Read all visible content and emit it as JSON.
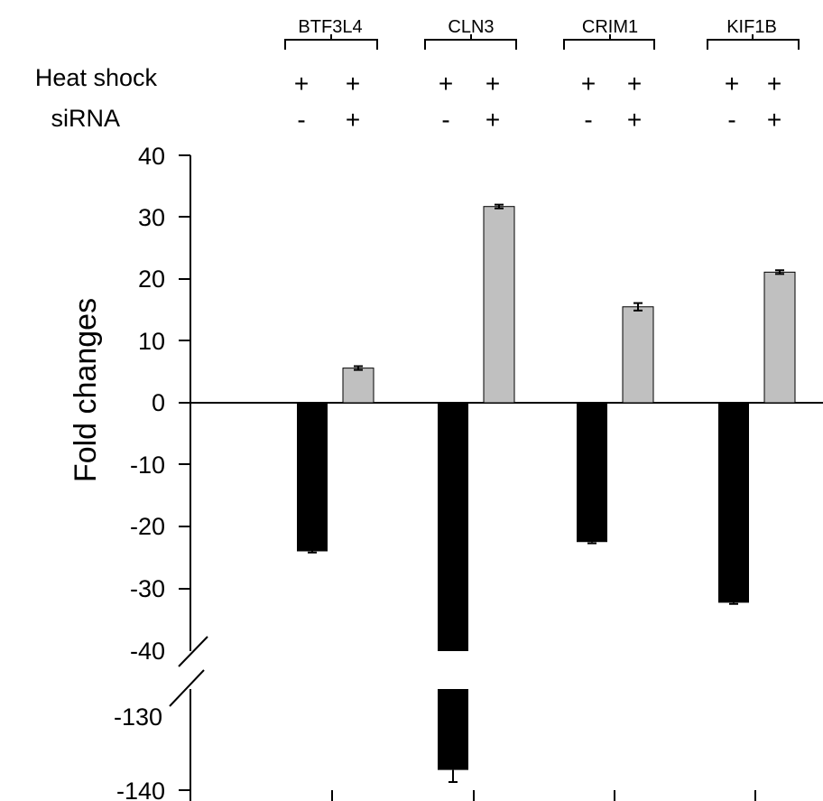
{
  "chart_data": {
    "type": "bar",
    "ylabel": "Fold changes",
    "yticks_upper": [
      "40",
      "30",
      "20",
      "10",
      "0",
      "-10",
      "-20",
      "-30",
      "-40"
    ],
    "yticks_lower": [
      "-130",
      "-140"
    ],
    "axis_break": [
      -40,
      -130
    ],
    "condition_labels": [
      "Heat shock",
      "siRNA"
    ],
    "heat_shock_marks": [
      "+",
      "+",
      "+",
      "+",
      "+",
      "+",
      "+",
      "+"
    ],
    "sirna_marks": [
      "-",
      "+",
      "-",
      "+",
      "-",
      "+",
      "-",
      "+"
    ],
    "categories": [
      "BTF3L4",
      "CLN3",
      "CRIM1",
      "KIF1B"
    ],
    "series": [
      {
        "values": [
          -24.0,
          -138.0,
          -22.5,
          -32.3
        ],
        "errors": [
          0.2,
          1.2,
          0.2,
          0.2
        ],
        "color": "#000000"
      },
      {
        "values": [
          5.6,
          31.7,
          15.5,
          21.1
        ],
        "errors": [
          0.3,
          0.3,
          0.6,
          0.3
        ],
        "color": "#c0c0c0"
      }
    ]
  }
}
